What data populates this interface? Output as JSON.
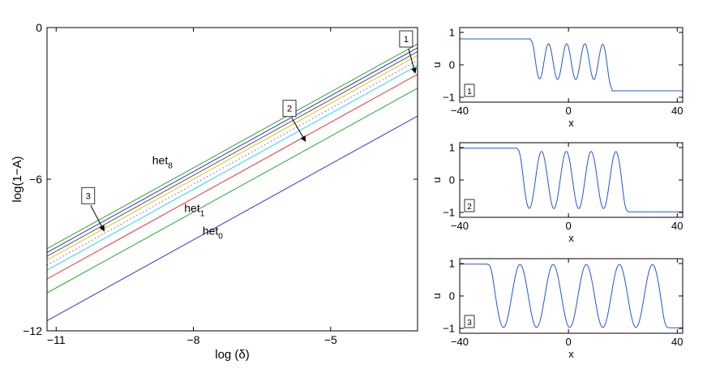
{
  "chart_data": [
    {
      "type": "line",
      "xlabel": "log (δ)",
      "ylabel": "log(1−A)",
      "xlim": [
        -11.2,
        -3.1
      ],
      "ylim": [
        -12,
        0
      ],
      "xticks": [
        {
          "value": -11,
          "label": "−11"
        },
        {
          "value": -8,
          "label": "−8"
        },
        {
          "value": -5,
          "label": "−5"
        }
      ],
      "yticks": [
        {
          "value": 0,
          "label": "0"
        },
        {
          "value": -6,
          "label": "−6"
        },
        {
          "value": -12,
          "label": "−12"
        }
      ],
      "slope": 1.0,
      "lines": [
        {
          "color": "#3333cc",
          "dashed": false,
          "y_at_xmin": -11.6
        },
        {
          "color": "#22aa22",
          "dashed": false,
          "y_at_xmin": -10.5
        },
        {
          "color": "#ee3333",
          "dashed": false,
          "y_at_xmin": -9.95
        },
        {
          "color": "#22dddd",
          "dashed": false,
          "y_at_xmin": -9.6
        },
        {
          "color": "#cc33cc",
          "dashed": true,
          "y_at_xmin": -9.4
        },
        {
          "color": "#cccc22",
          "dashed": false,
          "y_at_xmin": -9.2
        },
        {
          "color": "#555555",
          "dashed": false,
          "y_at_xmin": -9.05
        },
        {
          "color": "#3333cc",
          "dashed": false,
          "y_at_xmin": -8.9
        },
        {
          "color": "#22aa22",
          "dashed": false,
          "y_at_xmin": -8.75
        }
      ],
      "annotations": [
        {
          "text": "1",
          "box": true,
          "x": -3.35,
          "y": -0.45,
          "arrow_to": [
            -3.15,
            -1.8
          ]
        },
        {
          "text": "2",
          "box": true,
          "x": -5.9,
          "y": -3.2,
          "arrow_to": [
            -5.55,
            -4.5
          ]
        },
        {
          "text": "3",
          "box": true,
          "x": -10.3,
          "y": -6.65,
          "arrow_to": [
            -9.95,
            -8.05
          ]
        }
      ],
      "labels": [
        {
          "base": "het",
          "sub": "8",
          "x": -8.9,
          "y": -5.4
        },
        {
          "base": "het",
          "sub": "1",
          "x": -8.2,
          "y": -7.3
        },
        {
          "base": "het",
          "sub": "0",
          "x": -7.8,
          "y": -8.2
        }
      ]
    },
    {
      "type": "line",
      "panel_label": "1",
      "xlabel": "x",
      "ylabel": "u",
      "xlim": [
        -40,
        42
      ],
      "ylim": [
        -1.15,
        1.15
      ],
      "xticks": [
        {
          "value": -40,
          "label": "−40"
        },
        {
          "value": 0,
          "label": "0"
        },
        {
          "value": 40,
          "label": "40"
        }
      ],
      "yticks": [
        {
          "value": 1,
          "label": "1"
        },
        {
          "value": 0,
          "label": "0"
        },
        {
          "value": -1,
          "label": "−1"
        }
      ],
      "profile": {
        "left_level": 0.8,
        "right_level": -0.8,
        "left_front": -14,
        "right_front": 16,
        "oscillations": 4,
        "amplitude": 0.55,
        "offset": 0.1
      }
    },
    {
      "type": "line",
      "panel_label": "2",
      "xlabel": "x",
      "ylabel": "u",
      "xlim": [
        -40,
        42
      ],
      "ylim": [
        -1.15,
        1.15
      ],
      "xticks": [
        {
          "value": -40,
          "label": "−40"
        },
        {
          "value": 0,
          "label": "0"
        },
        {
          "value": 40,
          "label": "40"
        }
      ],
      "yticks": [
        {
          "value": 1,
          "label": "1"
        },
        {
          "value": 0,
          "label": "0"
        },
        {
          "value": -1,
          "label": "−1"
        }
      ],
      "profile": {
        "left_level": 0.98,
        "right_level": -0.98,
        "left_front": -19,
        "right_front": 22,
        "oscillations": 4,
        "amplitude": 0.88,
        "offset": 0.0
      }
    },
    {
      "type": "line",
      "panel_label": "3",
      "xlabel": "x",
      "ylabel": "u",
      "xlim": [
        -40,
        42
      ],
      "ylim": [
        -1.15,
        1.15
      ],
      "xticks": [
        {
          "value": -40,
          "label": "−40"
        },
        {
          "value": 0,
          "label": "0"
        },
        {
          "value": 40,
          "label": "40"
        }
      ],
      "yticks": [
        {
          "value": 1,
          "label": "1"
        },
        {
          "value": 0,
          "label": "0"
        },
        {
          "value": -1,
          "label": "−1"
        }
      ],
      "profile": {
        "left_level": 0.98,
        "right_level": -0.98,
        "left_front": -30,
        "right_front": 37,
        "oscillations": 5,
        "amplitude": 0.97,
        "offset": 0.0
      }
    }
  ]
}
